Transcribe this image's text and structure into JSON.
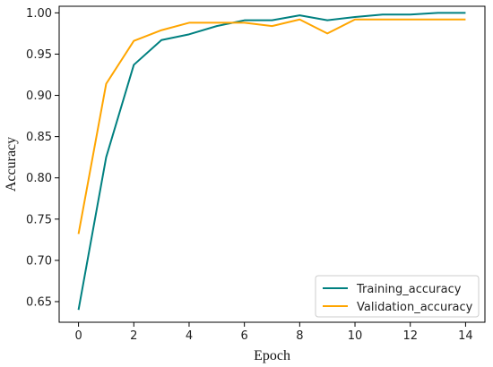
{
  "chart_data": {
    "type": "line",
    "xlabel": "Epoch",
    "ylabel": "Accuracy",
    "xlim": [
      -0.7,
      14.7
    ],
    "ylim": [
      0.625,
      1.008
    ],
    "xticks": [
      0,
      2,
      4,
      6,
      8,
      10,
      12,
      14
    ],
    "yticks": [
      0.65,
      0.7,
      0.75,
      0.8,
      0.85,
      0.9,
      0.95,
      1.0
    ],
    "ytick_labels": [
      "0.65",
      "0.70",
      "0.75",
      "0.80",
      "0.85",
      "0.90",
      "0.95",
      "1.00"
    ],
    "grid": false,
    "legend_position": "bottom-right",
    "x": [
      0,
      1,
      2,
      3,
      4,
      5,
      6,
      7,
      8,
      9,
      10,
      11,
      12,
      13,
      14
    ],
    "series": [
      {
        "name": "Training_accuracy",
        "color": "#008080",
        "values": [
          0.64,
          0.825,
          0.937,
          0.967,
          0.974,
          0.984,
          0.991,
          0.991,
          0.997,
          0.991,
          0.995,
          0.998,
          0.998,
          1.0,
          1.0
        ]
      },
      {
        "name": "Validation_accuracy",
        "color": "#FFA500",
        "values": [
          0.732,
          0.914,
          0.966,
          0.979,
          0.988,
          0.988,
          0.988,
          0.984,
          0.992,
          0.975,
          0.992,
          0.992,
          0.992,
          0.992,
          0.992
        ]
      }
    ]
  }
}
